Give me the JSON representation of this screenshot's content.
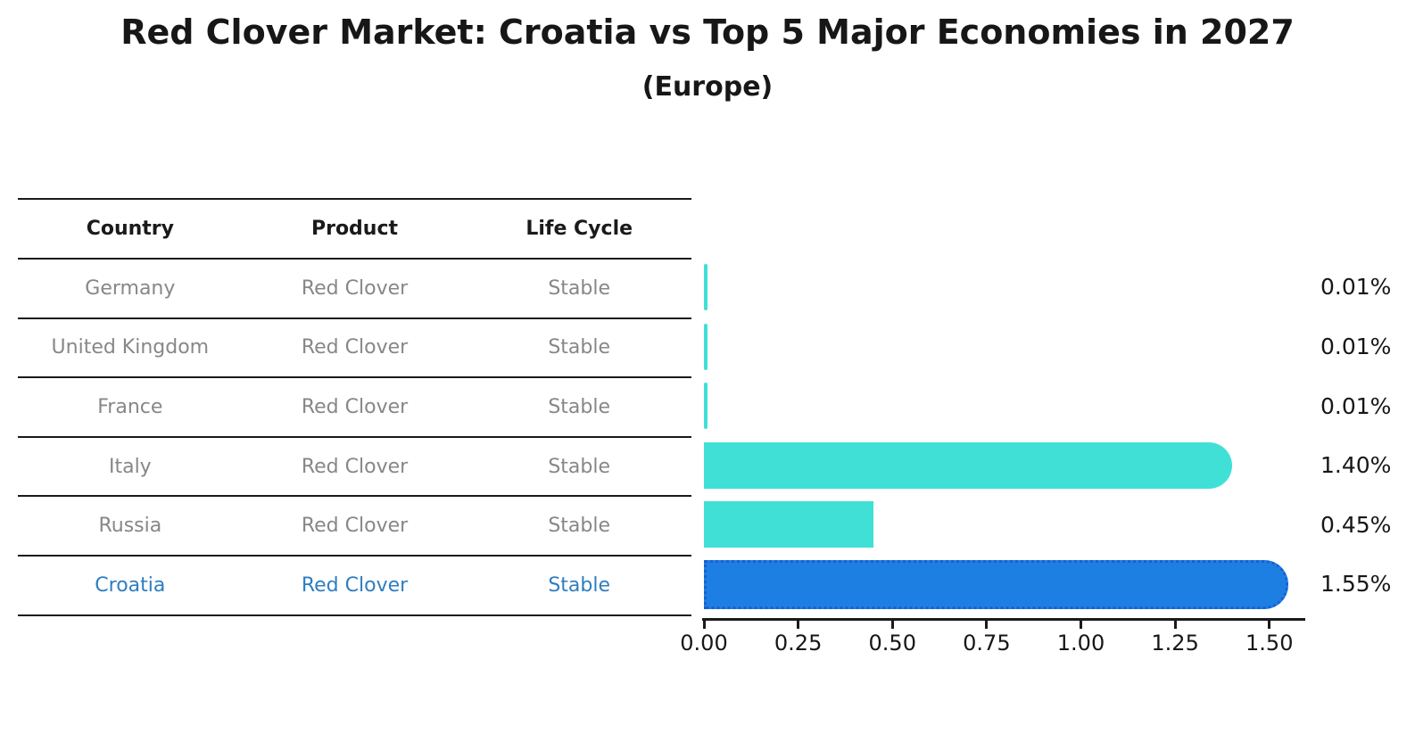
{
  "page": {
    "title": "Red Clover Market: Croatia vs Top 5 Major Economies in 2027",
    "subtitle": "(Europe)"
  },
  "table": {
    "columns": [
      "Country",
      "Product",
      "Life Cycle"
    ],
    "rows": [
      {
        "country": "Germany",
        "product": "Red Clover",
        "life_cycle": "Stable",
        "highlight": false
      },
      {
        "country": "United Kingdom",
        "product": "Red Clover",
        "life_cycle": "Stable",
        "highlight": false
      },
      {
        "country": "France",
        "product": "Red Clover",
        "life_cycle": "Stable",
        "highlight": false
      },
      {
        "country": "Italy",
        "product": "Red Clover",
        "life_cycle": "Stable",
        "highlight": false
      },
      {
        "country": "Russia",
        "product": "Red Clover",
        "life_cycle": "Stable",
        "highlight": false
      },
      {
        "country": "Croatia",
        "product": "Red Clover",
        "life_cycle": "Stable",
        "highlight": true
      }
    ]
  },
  "chart_data": {
    "type": "bar",
    "orientation": "horizontal",
    "title": "Red Clover Market: Croatia vs Top 5 Major Economies in 2027",
    "subtitle": "(Europe)",
    "categories": [
      "Germany",
      "United Kingdom",
      "France",
      "Italy",
      "Russia",
      "Croatia"
    ],
    "values": [
      0.01,
      0.01,
      0.01,
      1.4,
      0.45,
      1.55
    ],
    "value_labels": [
      "0.01%",
      "0.01%",
      "0.01%",
      "1.40%",
      "0.45%",
      "1.55%"
    ],
    "xticks": [
      0.0,
      0.25,
      0.5,
      0.75,
      1.0,
      1.25,
      1.5
    ],
    "xtick_labels": [
      "0.00",
      "0.25",
      "0.50",
      "0.75",
      "1.00",
      "1.25",
      "1.50"
    ],
    "xlim": [
      0,
      1.6
    ],
    "grid": false,
    "legend": "none",
    "rounded_bars": [
      false,
      false,
      false,
      true,
      false,
      true
    ],
    "colors": {
      "bar": "#40E0D6",
      "highlight_bar": "#1E7FE3",
      "highlight_border": "#1A5FD0",
      "highlight_text": "#2E7EC0",
      "row_text": "#878787",
      "axis": "#1a1a1a"
    }
  }
}
